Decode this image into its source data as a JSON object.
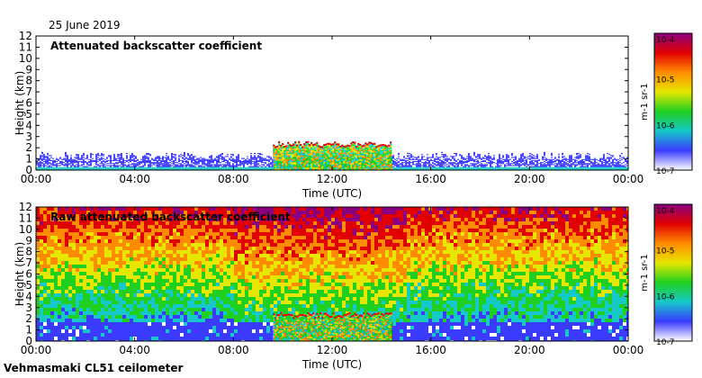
{
  "date_label": "25 June 2019",
  "instrument_label": "Vehmasmaki CL51 ceilometer",
  "colorscale": {
    "colors": [
      "#ffffff",
      "#3b3bff",
      "#16c8c8",
      "#20d020",
      "#e6e600",
      "#ff8c00",
      "#e00000",
      "#8b0080"
    ],
    "high_mark": "#ff0000"
  },
  "chart_data": [
    {
      "type": "heatmap",
      "title": "Attenuated backscatter coefficient",
      "xlabel": "Time (UTC)",
      "ylabel": "Height (km)",
      "x_ticks": [
        "00:00",
        "04:00",
        "08:00",
        "12:00",
        "16:00",
        "20:00",
        "00:00"
      ],
      "x_range_hours": [
        0,
        24
      ],
      "y_ticks": [
        0,
        1,
        2,
        3,
        4,
        5,
        6,
        7,
        8,
        9,
        10,
        11,
        12
      ],
      "ylim": [
        0,
        12
      ],
      "colorbar": {
        "ticks": [
          "10-7",
          "10-6",
          "10-5",
          "10-4"
        ],
        "label": "m-1 sr-1",
        "range": [
          1e-07,
          0.0001
        ],
        "scale": "log"
      },
      "features": [
        {
          "kind": "boundary-layer",
          "t_start": 0,
          "t_end": 24,
          "top_km": 1.3
        },
        {
          "kind": "cloud-layer",
          "t_start": 9.6,
          "t_end": 14.4,
          "top_km": 2.4,
          "bottom_km": 0
        }
      ]
    },
    {
      "type": "heatmap",
      "title": "Raw attenuated backscatter coefficient",
      "xlabel": "Time (UTC)",
      "ylabel": "Height (km)",
      "x_ticks": [
        "00:00",
        "04:00",
        "08:00",
        "12:00",
        "16:00",
        "20:00",
        "00:00"
      ],
      "x_range_hours": [
        0,
        24
      ],
      "y_ticks": [
        0,
        1,
        2,
        3,
        4,
        5,
        6,
        7,
        8,
        9,
        10,
        11,
        12
      ],
      "ylim": [
        0,
        12
      ],
      "colorbar": {
        "ticks": [
          "10-7",
          "10-6",
          "10-5",
          "10-4"
        ],
        "label": "m-1 sr-1",
        "range": [
          1e-07,
          0.0001
        ],
        "scale": "log"
      },
      "features": [
        {
          "kind": "noise-field",
          "t_start": 0,
          "t_end": 24,
          "min_km": 0,
          "max_km": 12
        },
        {
          "kind": "cloud-layer",
          "t_start": 9.6,
          "t_end": 14.4,
          "top_km": 2.4,
          "bottom_km": 0
        }
      ]
    }
  ]
}
